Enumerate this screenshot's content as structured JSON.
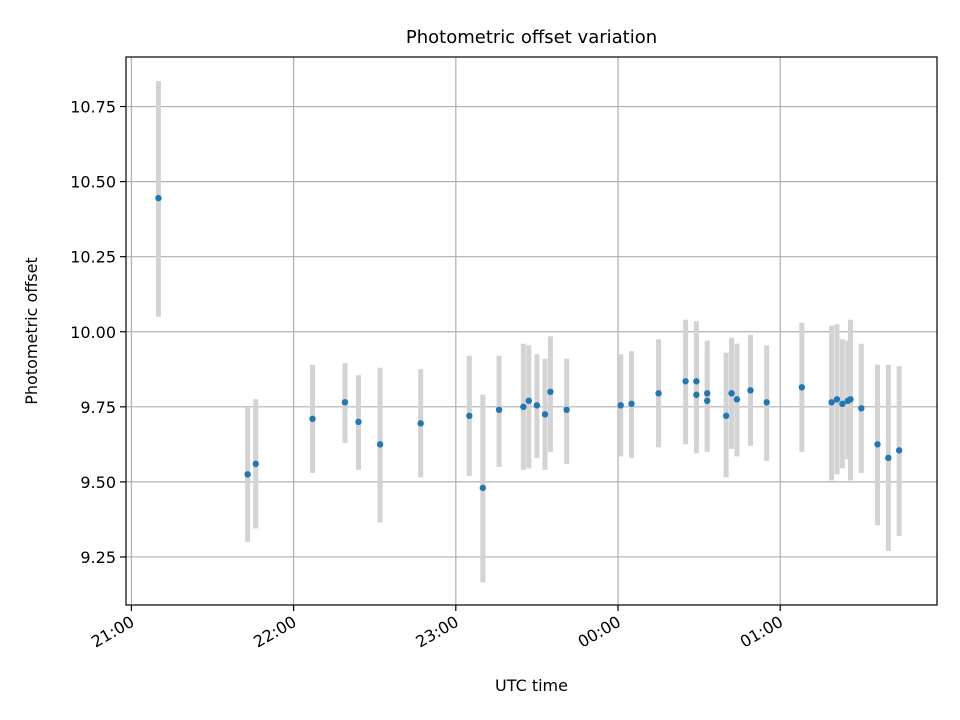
{
  "chart_data": {
    "type": "scatter",
    "title": "Photometric offset variation",
    "xlabel": "UTC time",
    "ylabel": "Photometric offset",
    "x_ticks": [
      "21:00",
      "22:00",
      "23:00",
      "00:00",
      "01:00"
    ],
    "y_ticks": [
      "9.25",
      "9.50",
      "9.75",
      "10.00",
      "10.25",
      "10.50",
      "10.75"
    ],
    "xlim": [
      "20:58",
      "01:58"
    ],
    "ylim": [
      9.09,
      10.915
    ],
    "grid": true,
    "colors": {
      "points": "#1f77b4",
      "errorbars": "#d3d3d3",
      "grid": "#b0b0b0"
    },
    "points": [
      {
        "x": "21:10",
        "y": 10.445,
        "lo": 10.05,
        "hi": 10.835
      },
      {
        "x": "21:43",
        "y": 9.525,
        "lo": 9.3,
        "hi": 9.75
      },
      {
        "x": "21:46",
        "y": 9.56,
        "lo": 9.345,
        "hi": 9.775
      },
      {
        "x": "22:07",
        "y": 9.71,
        "lo": 9.53,
        "hi": 9.89
      },
      {
        "x": "22:19",
        "y": 9.765,
        "lo": 9.63,
        "hi": 9.895
      },
      {
        "x": "22:24",
        "y": 9.7,
        "lo": 9.54,
        "hi": 9.855
      },
      {
        "x": "22:32",
        "y": 9.625,
        "lo": 9.365,
        "hi": 9.88
      },
      {
        "x": "22:47",
        "y": 9.695,
        "lo": 9.515,
        "hi": 9.875
      },
      {
        "x": "23:05",
        "y": 9.72,
        "lo": 9.52,
        "hi": 9.92
      },
      {
        "x": "23:10",
        "y": 9.48,
        "lo": 9.165,
        "hi": 9.79
      },
      {
        "x": "23:16",
        "y": 9.74,
        "lo": 9.55,
        "hi": 9.92
      },
      {
        "x": "23:25",
        "y": 9.75,
        "lo": 9.54,
        "hi": 9.96
      },
      {
        "x": "23:27",
        "y": 9.77,
        "lo": 9.545,
        "hi": 9.955
      },
      {
        "x": "23:30",
        "y": 9.755,
        "lo": 9.58,
        "hi": 9.925
      },
      {
        "x": "23:33",
        "y": 9.725,
        "lo": 9.54,
        "hi": 9.91
      },
      {
        "x": "23:35",
        "y": 9.8,
        "lo": 9.6,
        "hi": 9.985
      },
      {
        "x": "23:41",
        "y": 9.74,
        "lo": 9.56,
        "hi": 9.91
      },
      {
        "x": "00:01",
        "y": 9.755,
        "lo": 9.585,
        "hi": 9.925
      },
      {
        "x": "00:05",
        "y": 9.76,
        "lo": 9.58,
        "hi": 9.935
      },
      {
        "x": "00:15",
        "y": 9.795,
        "lo": 9.615,
        "hi": 9.975
      },
      {
        "x": "00:25",
        "y": 9.835,
        "lo": 9.625,
        "hi": 10.04
      },
      {
        "x": "00:29",
        "y": 9.79,
        "lo": 9.595,
        "hi": 9.985
      },
      {
        "x": "00:29",
        "y": 9.835,
        "lo": 9.635,
        "hi": 10.035
      },
      {
        "x": "00:33",
        "y": 9.795,
        "lo": 9.6,
        "hi": 9.97
      },
      {
        "x": "00:33",
        "y": 9.77,
        "lo": 9.605,
        "hi": 9.93
      },
      {
        "x": "00:40",
        "y": 9.72,
        "lo": 9.515,
        "hi": 9.93
      },
      {
        "x": "00:42",
        "y": 9.795,
        "lo": 9.61,
        "hi": 9.98
      },
      {
        "x": "00:44",
        "y": 9.775,
        "lo": 9.585,
        "hi": 9.96
      },
      {
        "x": "00:49",
        "y": 9.805,
        "lo": 9.62,
        "hi": 9.99
      },
      {
        "x": "00:55",
        "y": 9.765,
        "lo": 9.57,
        "hi": 9.955
      },
      {
        "x": "01:08",
        "y": 9.815,
        "lo": 9.6,
        "hi": 10.03
      },
      {
        "x": "01:19",
        "y": 9.765,
        "lo": 9.505,
        "hi": 10.02
      },
      {
        "x": "01:21",
        "y": 9.775,
        "lo": 9.525,
        "hi": 10.025
      },
      {
        "x": "01:23",
        "y": 9.76,
        "lo": 9.545,
        "hi": 9.975
      },
      {
        "x": "01:25",
        "y": 9.77,
        "lo": 9.575,
        "hi": 9.97
      },
      {
        "x": "01:26",
        "y": 9.775,
        "lo": 9.505,
        "hi": 10.04
      },
      {
        "x": "01:30",
        "y": 9.745,
        "lo": 9.53,
        "hi": 9.96
      },
      {
        "x": "01:36",
        "y": 9.625,
        "lo": 9.355,
        "hi": 9.89
      },
      {
        "x": "01:40",
        "y": 9.58,
        "lo": 9.27,
        "hi": 9.89
      },
      {
        "x": "01:44",
        "y": 9.605,
        "lo": 9.32,
        "hi": 9.885
      }
    ]
  }
}
